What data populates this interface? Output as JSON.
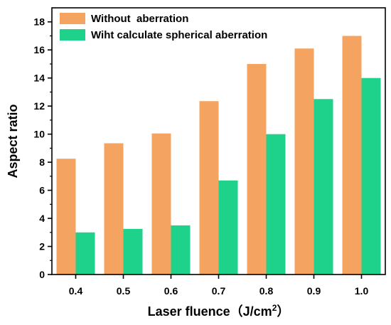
{
  "chart_data": {
    "type": "bar",
    "title": "",
    "xlabel": "Laser fluence（J/cm",
    "xlabel_superscript": "2",
    "xlabel_close": "）",
    "ylabel": "Aspect ratio",
    "categories": [
      "0.4",
      "0.5",
      "0.6",
      "0.7",
      "0.8",
      "0.9",
      "1.0"
    ],
    "ylim": [
      0,
      19
    ],
    "yticks": [
      0,
      2,
      4,
      6,
      8,
      10,
      12,
      14,
      16,
      18
    ],
    "grid": false,
    "legend_position": "top-left",
    "series": [
      {
        "name": "Without  aberration",
        "color": "#F4A460",
        "values": [
          8.25,
          9.35,
          10.05,
          12.35,
          15.0,
          16.1,
          17.0
        ]
      },
      {
        "name": "Wiht calculate spherical aberration",
        "color": "#1ED28C",
        "values": [
          3.0,
          3.25,
          3.5,
          6.7,
          10.0,
          12.5,
          14.0
        ]
      }
    ]
  }
}
